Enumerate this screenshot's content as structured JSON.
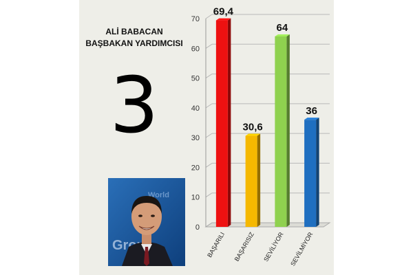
{
  "header": {
    "line1": "ALİ BABACAN",
    "line2": "BAŞBAKAN YARDIMCISI"
  },
  "rank": "3",
  "photo": {
    "alt_icon": "portrait-photo",
    "backdrop_text": "World Group"
  },
  "colors": {
    "panel": "#eeeee8",
    "bar_red": "#ee1111",
    "bar_yellow": "#f5b800",
    "bar_green": "#8fd14f",
    "bar_blue": "#1f6fc0"
  },
  "chart_data": {
    "type": "bar",
    "title": "",
    "xlabel": "",
    "ylabel": "",
    "ylim": [
      0,
      70
    ],
    "yticks": [
      0,
      10,
      20,
      30,
      40,
      50,
      60,
      70
    ],
    "grid": true,
    "categories": [
      "BAŞARILI",
      "BAŞARISIZ",
      "SEVİLİYOR",
      "SEVİLMİYOR"
    ],
    "values": [
      69.4,
      30.6,
      64,
      36
    ],
    "data_labels": [
      "69,4",
      "30,6",
      "64",
      "36"
    ],
    "bar_colors": [
      "#ee1111",
      "#f5b800",
      "#8fd14f",
      "#1f6fc0"
    ]
  }
}
